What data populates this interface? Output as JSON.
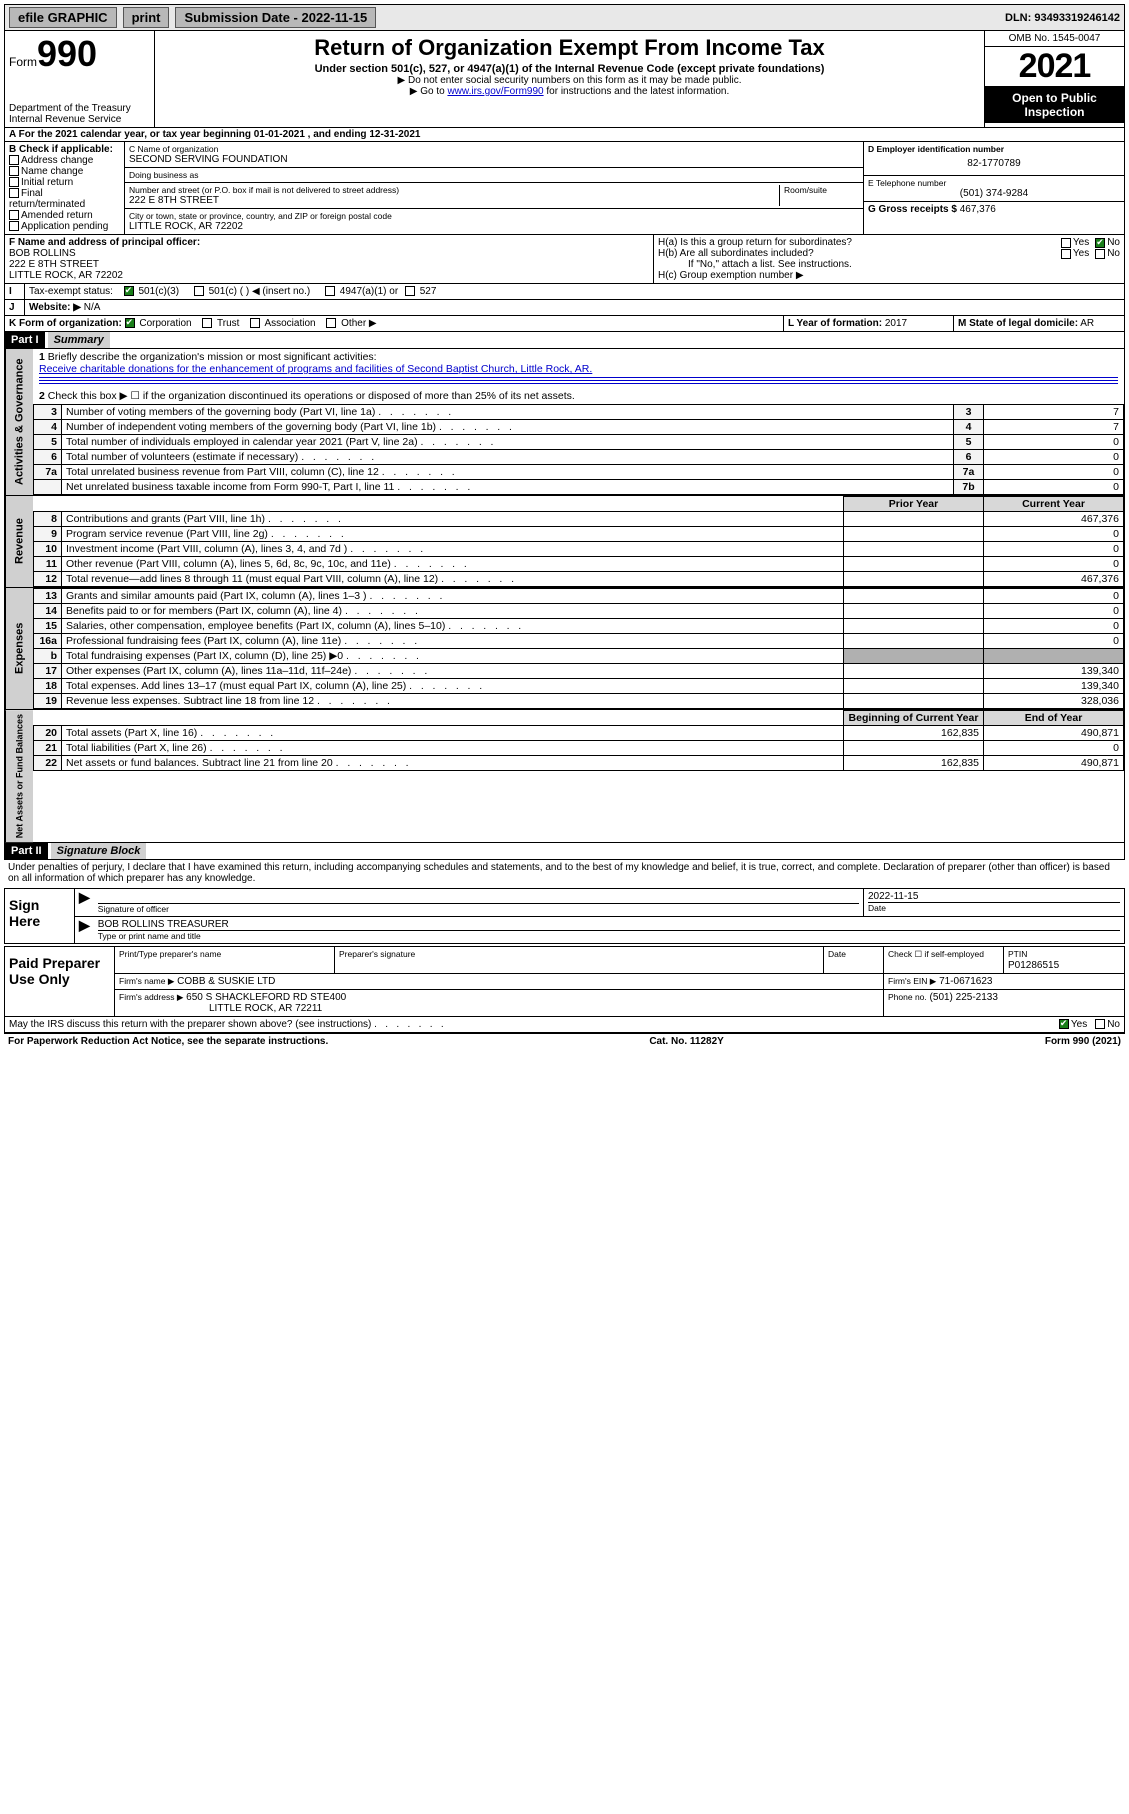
{
  "topbar": {
    "efile": "efile GRAPHIC",
    "print": "print",
    "submission_label": "Submission Date - 2022-11-15",
    "dln_label": "DLN: 93493319246142"
  },
  "header": {
    "form_word": "Form",
    "form_num": "990",
    "title": "Return of Organization Exempt From Income Tax",
    "subtitle": "Under section 501(c), 527, or 4947(a)(1) of the Internal Revenue Code (except private foundations)",
    "note1": "▶ Do not enter social security numbers on this form as it may be made public.",
    "note2_pre": "▶ Go to ",
    "note2_link": "www.irs.gov/Form990",
    "note2_post": " for instructions and the latest information.",
    "dept": "Department of the Treasury",
    "irs": "Internal Revenue Service",
    "omb": "OMB No. 1545-0047",
    "year": "2021",
    "open": "Open to Public Inspection"
  },
  "A": {
    "text": "A For the 2021 calendar year, or tax year beginning 01-01-2021   , and ending 12-31-2021"
  },
  "B": {
    "label": "B Check if applicable:",
    "items": [
      "Address change",
      "Name change",
      "Initial return",
      "Final return/terminated",
      "Amended return",
      "Application pending"
    ]
  },
  "C": {
    "name_label": "C Name of organization",
    "name": "SECOND SERVING FOUNDATION",
    "dba_label": "Doing business as",
    "dba": "",
    "street_label": "Number and street (or P.O. box if mail is not delivered to street address)",
    "room_label": "Room/suite",
    "street": "222 E 8TH STREET",
    "city_label": "City or town, state or province, country, and ZIP or foreign postal code",
    "city": "LITTLE ROCK, AR  72202"
  },
  "D": {
    "label": "D Employer identification number",
    "value": "82-1770789"
  },
  "E": {
    "label": "E Telephone number",
    "value": "(501) 374-9284"
  },
  "G": {
    "label": "G Gross receipts $",
    "value": "467,376"
  },
  "F": {
    "label": "F  Name and address of principal officer:",
    "name": "BOB ROLLINS",
    "street": "222 E 8TH STREET",
    "city": "LITTLE ROCK, AR  72202"
  },
  "H": {
    "a": "H(a)  Is this a group return for subordinates?",
    "b": "H(b)  Are all subordinates included?",
    "b_note": "If \"No,\" attach a list. See instructions.",
    "c": "H(c)  Group exemption number ▶",
    "yes": "Yes",
    "no": "No"
  },
  "I": {
    "label": "Tax-exempt status:",
    "opts": [
      "501(c)(3)",
      "501(c) (  ) ◀ (insert no.)",
      "4947(a)(1) or",
      "527"
    ]
  },
  "J": {
    "label": "Website: ▶",
    "value": "N/A"
  },
  "K": {
    "label": "K Form of organization:",
    "opts": [
      "Corporation",
      "Trust",
      "Association",
      "Other ▶"
    ]
  },
  "L": {
    "label": "L Year of formation:",
    "value": "2017"
  },
  "M": {
    "label": "M State of legal domicile:",
    "value": "AR"
  },
  "part1": {
    "hdr": "Part I",
    "title": "Summary",
    "q1": "Briefly describe the organization's mission or most significant activities:",
    "q1_ans": "Receive charitable donations for the enhancement of programs and facilities of Second Baptist Church, Little Rock, AR.",
    "q2": "Check this box ▶ ☐  if the organization discontinued its operations or disposed of more than 25% of its net assets.",
    "rows_gov": [
      {
        "n": "3",
        "d": "Number of voting members of the governing body (Part VI, line 1a)",
        "b": "3",
        "v": "7"
      },
      {
        "n": "4",
        "d": "Number of independent voting members of the governing body (Part VI, line 1b)",
        "b": "4",
        "v": "7"
      },
      {
        "n": "5",
        "d": "Total number of individuals employed in calendar year 2021 (Part V, line 2a)",
        "b": "5",
        "v": "0"
      },
      {
        "n": "6",
        "d": "Total number of volunteers (estimate if necessary)",
        "b": "6",
        "v": "0"
      },
      {
        "n": "7a",
        "d": "Total unrelated business revenue from Part VIII, column (C), line 12",
        "b": "7a",
        "v": "0"
      },
      {
        "n": "",
        "d": "Net unrelated business taxable income from Form 990-T, Part I, line 11",
        "b": "7b",
        "v": "0"
      }
    ],
    "col_prior": "Prior Year",
    "col_current": "Current Year",
    "rows_rev": [
      {
        "n": "8",
        "d": "Contributions and grants (Part VIII, line 1h)",
        "p": "",
        "c": "467,376"
      },
      {
        "n": "9",
        "d": "Program service revenue (Part VIII, line 2g)",
        "p": "",
        "c": "0"
      },
      {
        "n": "10",
        "d": "Investment income (Part VIII, column (A), lines 3, 4, and 7d )",
        "p": "",
        "c": "0"
      },
      {
        "n": "11",
        "d": "Other revenue (Part VIII, column (A), lines 5, 6d, 8c, 9c, 10c, and 11e)",
        "p": "",
        "c": "0"
      },
      {
        "n": "12",
        "d": "Total revenue—add lines 8 through 11 (must equal Part VIII, column (A), line 12)",
        "p": "",
        "c": "467,376"
      }
    ],
    "rows_exp": [
      {
        "n": "13",
        "d": "Grants and similar amounts paid (Part IX, column (A), lines 1–3 )",
        "p": "",
        "c": "0"
      },
      {
        "n": "14",
        "d": "Benefits paid to or for members (Part IX, column (A), line 4)",
        "p": "",
        "c": "0"
      },
      {
        "n": "15",
        "d": "Salaries, other compensation, employee benefits (Part IX, column (A), lines 5–10)",
        "p": "",
        "c": "0"
      },
      {
        "n": "16a",
        "d": "Professional fundraising fees (Part IX, column (A), line 11e)",
        "p": "",
        "c": "0"
      },
      {
        "n": "b",
        "d": "Total fundraising expenses (Part IX, column (D), line 25) ▶0",
        "p": "shade",
        "c": "shade"
      },
      {
        "n": "17",
        "d": "Other expenses (Part IX, column (A), lines 11a–11d, 11f–24e)",
        "p": "",
        "c": "139,340"
      },
      {
        "n": "18",
        "d": "Total expenses. Add lines 13–17 (must equal Part IX, column (A), line 25)",
        "p": "",
        "c": "139,340"
      },
      {
        "n": "19",
        "d": "Revenue less expenses. Subtract line 18 from line 12",
        "p": "",
        "c": "328,036"
      }
    ],
    "col_begin": "Beginning of Current Year",
    "col_end": "End of Year",
    "rows_net": [
      {
        "n": "20",
        "d": "Total assets (Part X, line 16)",
        "p": "162,835",
        "c": "490,871"
      },
      {
        "n": "21",
        "d": "Total liabilities (Part X, line 26)",
        "p": "",
        "c": "0"
      },
      {
        "n": "22",
        "d": "Net assets or fund balances. Subtract line 21 from line 20",
        "p": "162,835",
        "c": "490,871"
      }
    ],
    "vlabels": {
      "gov": "Activities & Governance",
      "rev": "Revenue",
      "exp": "Expenses",
      "net": "Net Assets or Fund Balances"
    }
  },
  "part2": {
    "hdr": "Part II",
    "title": "Signature Block",
    "perjury": "Under penalties of perjury, I declare that I have examined this return, including accompanying schedules and statements, and to the best of my knowledge and belief, it is true, correct, and complete. Declaration of preparer (other than officer) is based on all information of which preparer has any knowledge.",
    "sign_here": "Sign Here",
    "sig_officer": "Signature of officer",
    "date": "Date",
    "date_val": "2022-11-15",
    "name_title_label": "Type or print name and title",
    "name_title": "BOB ROLLINS  TREASURER",
    "paid": "Paid Preparer Use Only",
    "prep_name_label": "Print/Type preparer's name",
    "prep_sig_label": "Preparer's signature",
    "prep_date_label": "Date",
    "check_self": "Check ☐ if self-employed",
    "ptin_label": "PTIN",
    "ptin": "P01286515",
    "firm_name_label": "Firm's name    ▶",
    "firm_name": "COBB & SUSKIE LTD",
    "firm_ein_label": "Firm's EIN ▶",
    "firm_ein": "71-0671623",
    "firm_addr_label": "Firm's address ▶",
    "firm_addr1": "650 S SHACKLEFORD RD STE400",
    "firm_addr2": "LITTLE ROCK, AR  72211",
    "phone_label": "Phone no.",
    "phone": "(501) 225-2133",
    "may_irs": "May the IRS discuss this return with the preparer shown above? (see instructions)"
  },
  "footer": {
    "left": "For Paperwork Reduction Act Notice, see the separate instructions.",
    "mid": "Cat. No. 11282Y",
    "right": "Form 990 (2021)"
  }
}
